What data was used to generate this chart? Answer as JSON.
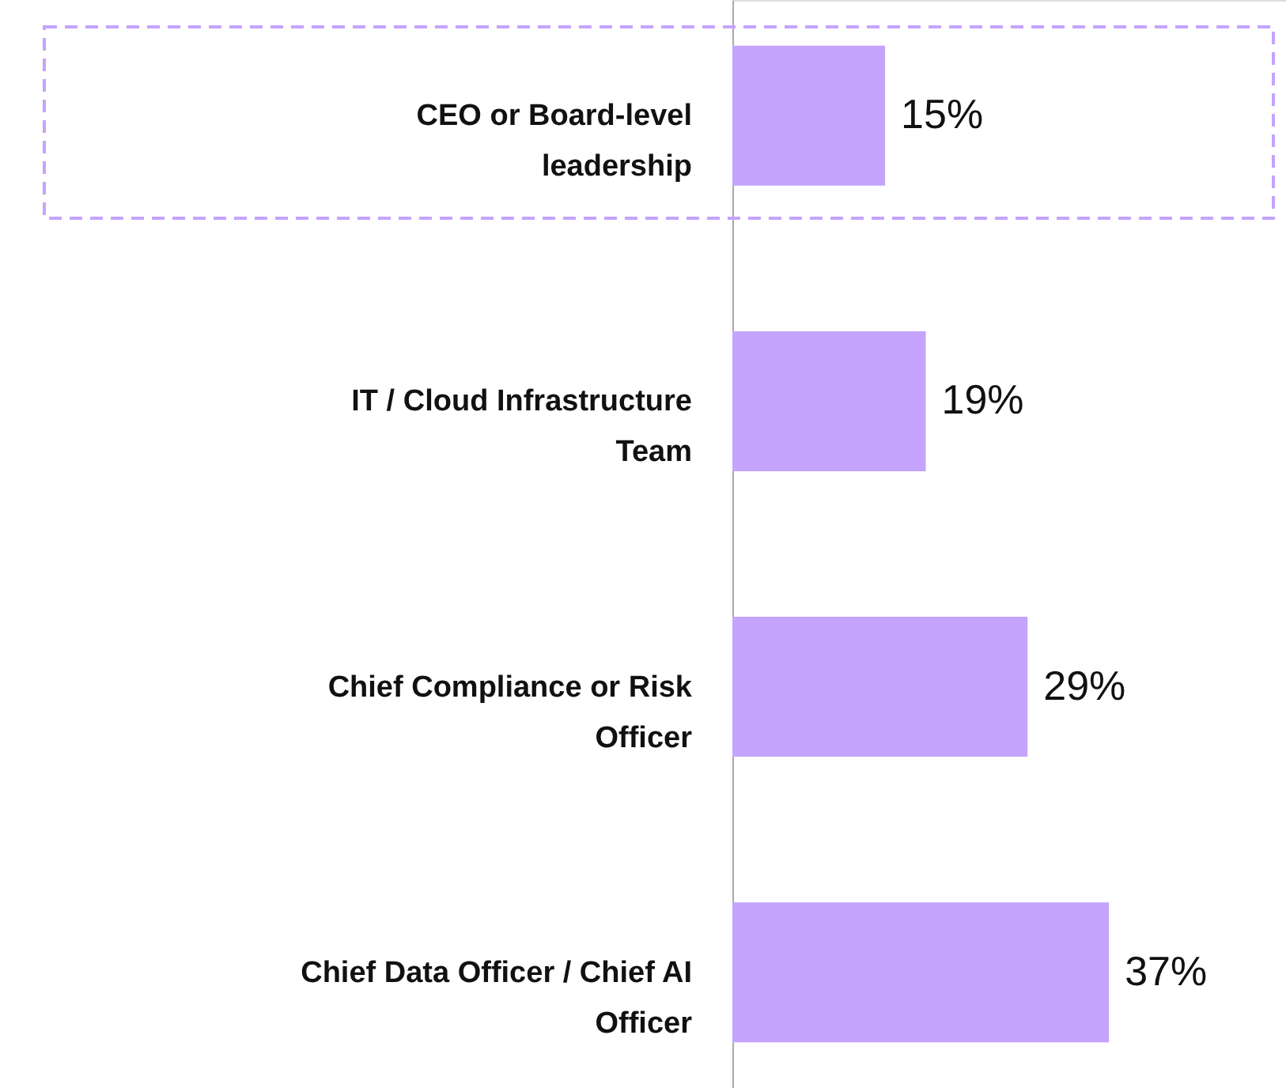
{
  "chart_data": {
    "type": "bar",
    "orientation": "horizontal",
    "categories": [
      "CEO or Board-level leadership",
      "IT / Cloud Infrastructure Team",
      "Chief Compliance or Risk Officer",
      "Chief Data Officer / Chief AI Officer"
    ],
    "values": [
      15,
      19,
      29,
      37
    ],
    "value_labels": [
      "15%",
      "19%",
      "29%",
      "37%"
    ],
    "color": "#c4a4fc"
  }
}
